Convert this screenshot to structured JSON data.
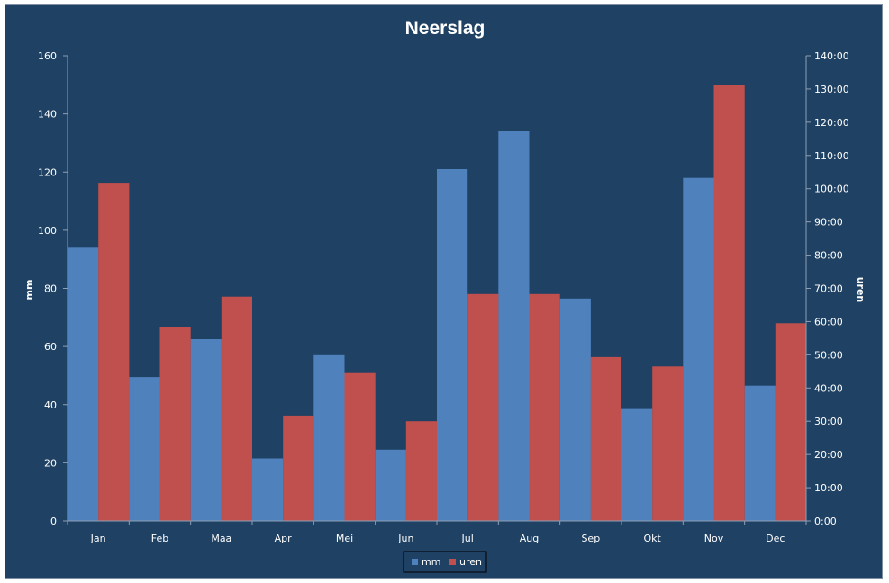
{
  "chart_data": {
    "type": "bar",
    "title": "Neerslag",
    "categories": [
      "Jan",
      "Feb",
      "Maa",
      "Apr",
      "Mei",
      "Jun",
      "Jul",
      "Aug",
      "Sep",
      "Okt",
      "Nov",
      "Dec"
    ],
    "series": [
      {
        "name": "mm",
        "axis": "left",
        "color": "#4f81bd",
        "values": [
          94,
          49.5,
          62.5,
          21.5,
          57,
          24.5,
          121,
          134,
          76.5,
          38.5,
          118,
          46.5
        ]
      },
      {
        "name": "uren",
        "axis": "right",
        "color": "#c0504d",
        "values": [
          101.8,
          58.5,
          67.5,
          31.7,
          44.5,
          30,
          68.3,
          68.3,
          49.3,
          46.5,
          131.3,
          59.5
        ]
      }
    ],
    "ylabel": "mm",
    "ylim": [
      0,
      160
    ],
    "yticks": [
      "0",
      "20",
      "40",
      "60",
      "80",
      "100",
      "120",
      "140",
      "160"
    ],
    "y2label": "uren",
    "y2lim": [
      0,
      140
    ],
    "y2ticks": [
      "0:00",
      "10:00",
      "20:00",
      "30:00",
      "40:00",
      "50:00",
      "60:00",
      "70:00",
      "80:00",
      "90:00",
      "100:00",
      "110:00",
      "120:00",
      "130:00",
      "140:00"
    ],
    "legend": "bottom",
    "grid": false,
    "background": "#1f4163"
  }
}
